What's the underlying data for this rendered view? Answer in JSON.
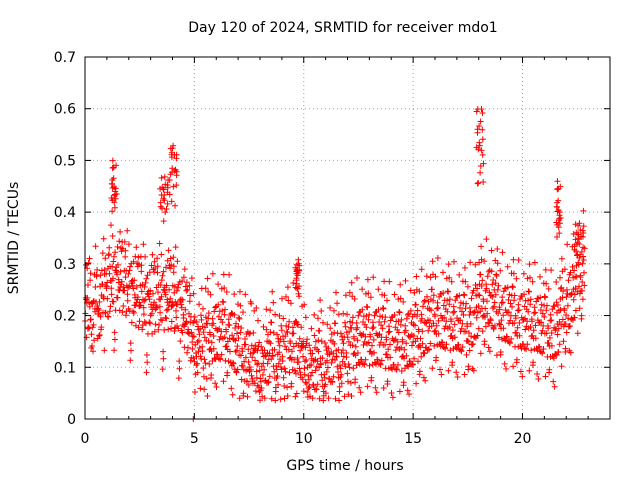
{
  "chart_data": {
    "type": "scatter",
    "title": "Day 120 of 2024, SRMTID for receiver mdo1",
    "xlabel": "GPS time / hours",
    "ylabel": "SRMTID / TECUs",
    "xlim": [
      0,
      24
    ],
    "ylim": [
      0,
      0.7
    ],
    "xticks": [
      0,
      5,
      10,
      15,
      20
    ],
    "xtick_labels": [
      "0",
      "5",
      "10",
      "15",
      "20"
    ],
    "yticks": [
      0,
      0.1,
      0.2,
      0.3,
      0.4,
      0.5,
      0.6,
      0.7
    ],
    "ytick_labels": [
      "0",
      "0.1",
      "0.2",
      "0.3",
      "0.4",
      "0.5",
      "0.6",
      "0.7"
    ],
    "grid": true,
    "marker": "plus",
    "series_color": "#ff0000",
    "trend": {
      "x": [
        0,
        0.5,
        1,
        1.5,
        2,
        2.5,
        3,
        3.5,
        4,
        4.5,
        5,
        5.5,
        6,
        6.5,
        7,
        7.5,
        8,
        8.5,
        9,
        9.5,
        10,
        10.5,
        11,
        11.5,
        12,
        12.5,
        13,
        13.5,
        14,
        14.5,
        15,
        15.5,
        16,
        16.5,
        17,
        17.5,
        18,
        18.5,
        19,
        19.5,
        20,
        20.5,
        21,
        21.5,
        22,
        22.5,
        22.8
      ],
      "y": [
        0.24,
        0.24,
        0.25,
        0.26,
        0.24,
        0.22,
        0.21,
        0.22,
        0.22,
        0.19,
        0.14,
        0.14,
        0.15,
        0.15,
        0.12,
        0.1,
        0.09,
        0.11,
        0.12,
        0.13,
        0.1,
        0.09,
        0.1,
        0.11,
        0.13,
        0.14,
        0.14,
        0.14,
        0.13,
        0.13,
        0.14,
        0.16,
        0.18,
        0.17,
        0.17,
        0.16,
        0.2,
        0.22,
        0.19,
        0.18,
        0.17,
        0.17,
        0.16,
        0.15,
        0.2,
        0.24,
        0.27
      ]
    },
    "spread": 0.055,
    "bursts": [
      {
        "x": [
          1.15,
          1.45
        ],
        "y": [
          0.4,
          0.5
        ]
      },
      {
        "x": [
          3.4,
          3.8
        ],
        "y": [
          0.38,
          0.47
        ]
      },
      {
        "x": [
          3.85,
          4.2
        ],
        "y": [
          0.4,
          0.53
        ]
      },
      {
        "x": [
          9.6,
          9.8
        ],
        "y": [
          0.24,
          0.31
        ]
      },
      {
        "x": [
          17.9,
          18.25
        ],
        "y": [
          0.45,
          0.6
        ]
      },
      {
        "x": [
          21.5,
          21.75
        ],
        "y": [
          0.35,
          0.46
        ]
      },
      {
        "x": [
          22.3,
          22.8
        ],
        "y": [
          0.3,
          0.38
        ]
      }
    ],
    "outliers": [
      {
        "x": 4.95,
        "y": 0.0
      }
    ],
    "x_range": [
      0,
      22.85
    ],
    "n_points": 1700
  }
}
